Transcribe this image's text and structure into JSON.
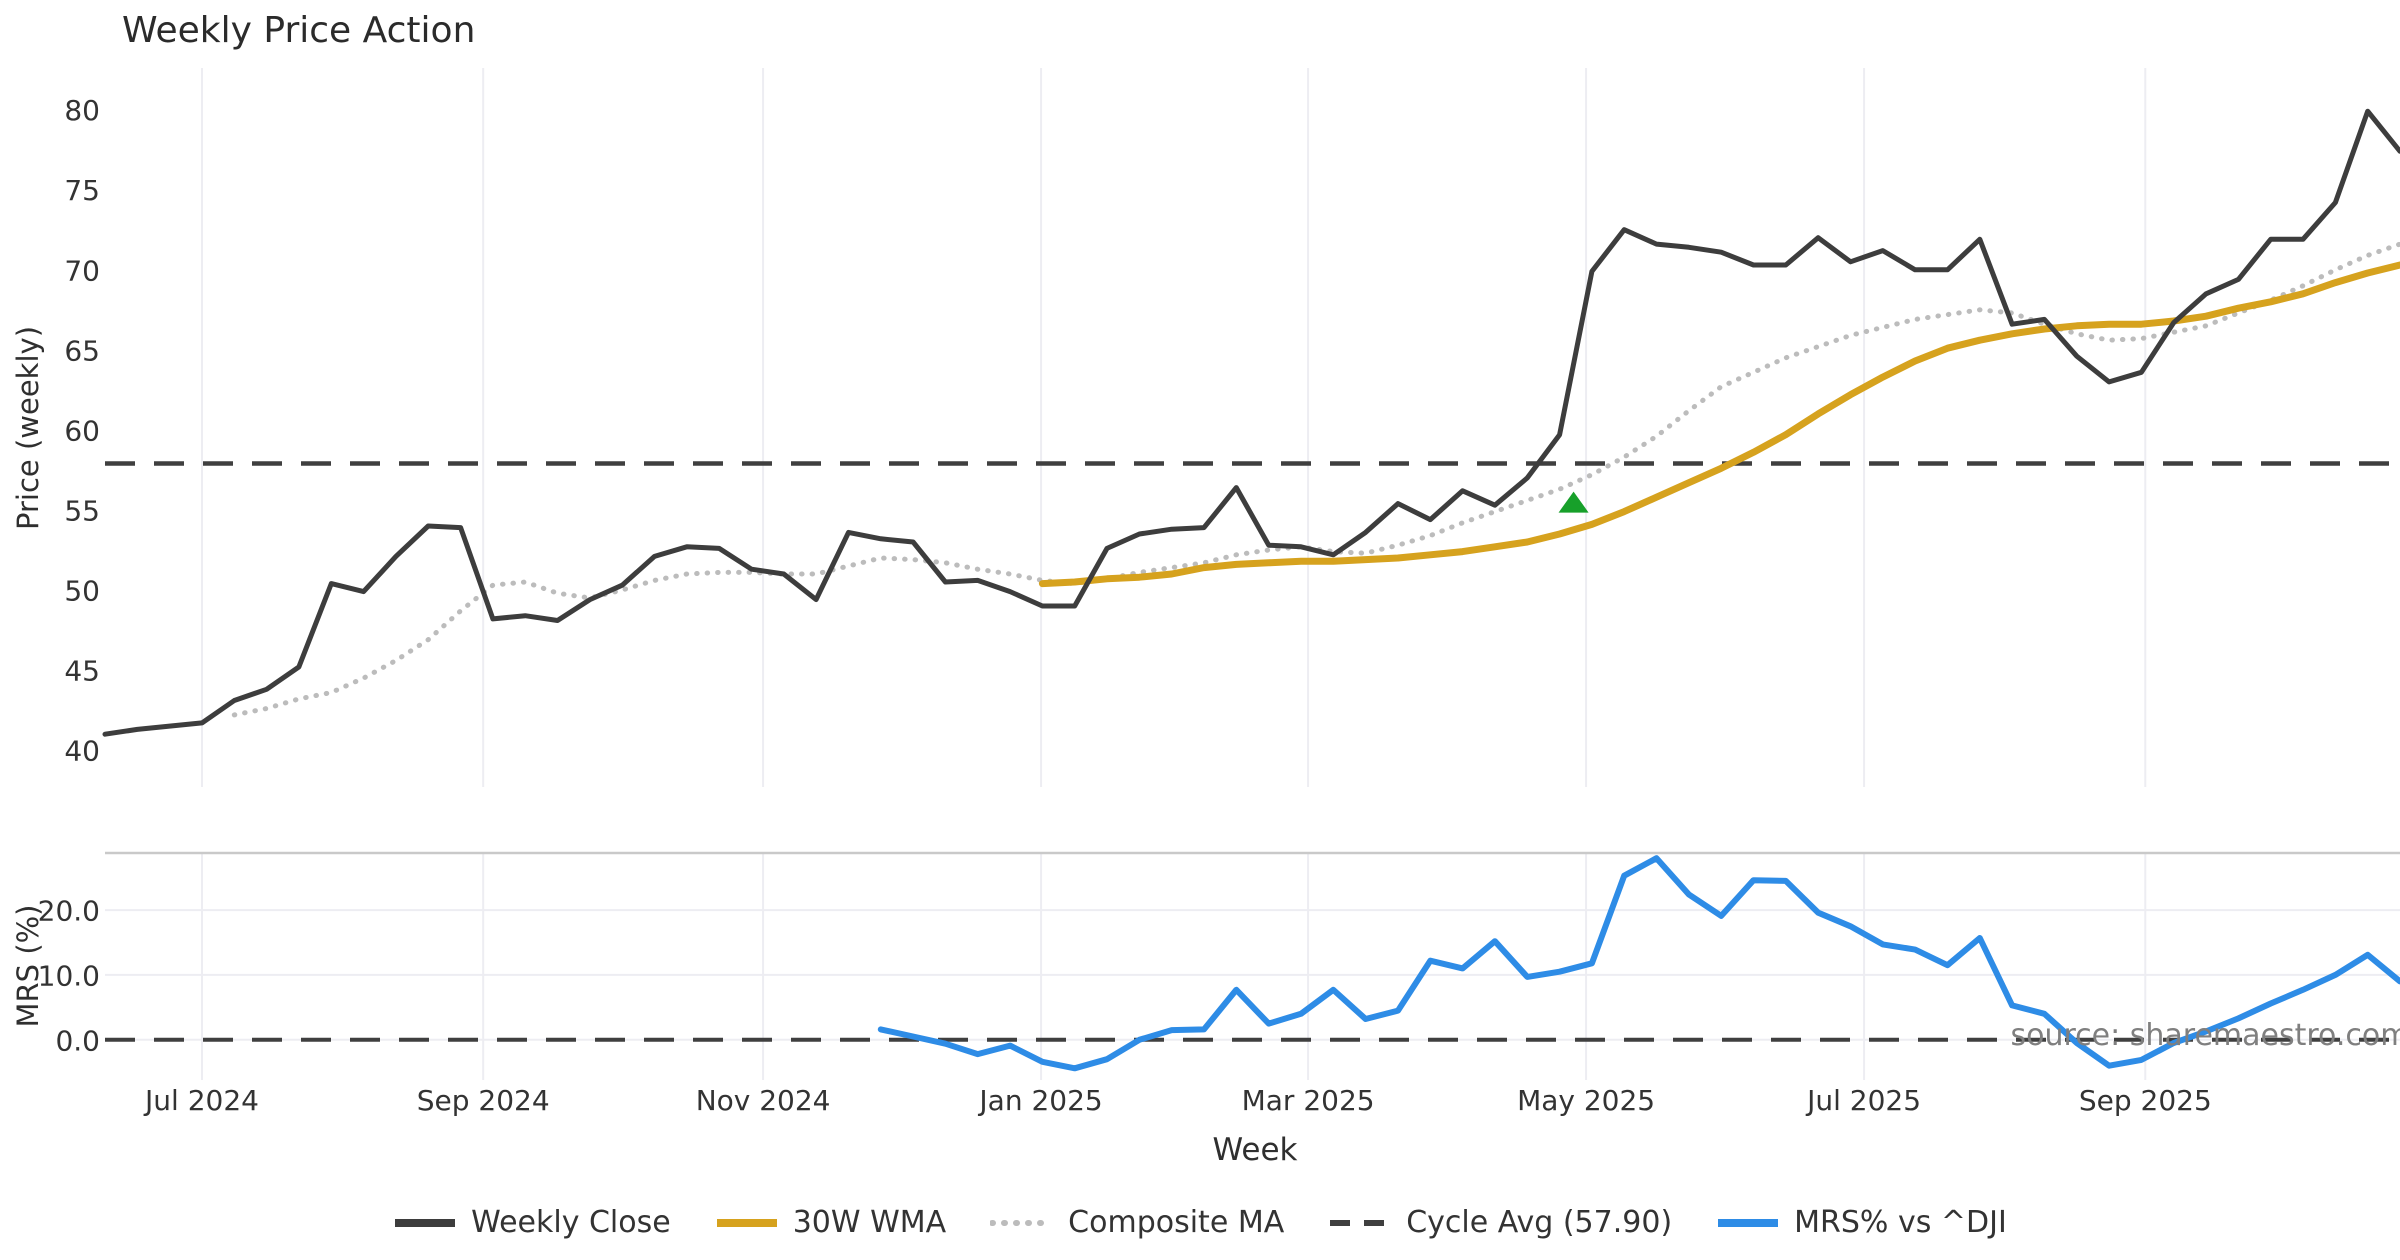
{
  "title": "Weekly Price Action",
  "source_note": "source: sharemaestro.com",
  "legend": [
    {
      "label": "Weekly Close",
      "color": "#3d3d3d",
      "style": "solid"
    },
    {
      "label": "30W WMA",
      "color": "#d6a21e",
      "style": "solid"
    },
    {
      "label": "Composite MA",
      "color": "#bcbcbc",
      "style": "dotted"
    },
    {
      "label": "Cycle Avg (57.90)",
      "color": "#3f3f3f",
      "style": "dashed"
    },
    {
      "label": "MRS% vs ^DJI",
      "color": "#2e8ce6",
      "style": "solid"
    }
  ],
  "chart_data": {
    "type": "line",
    "title": "Weekly Price Action",
    "xlabel": "Week",
    "x_unit": "weekly points, left to right",
    "n_points": 72,
    "x_ticks": [
      {
        "label": "Jul 2024",
        "pos": 3.0
      },
      {
        "label": "Sep 2024",
        "pos": 11.7
      },
      {
        "label": "Nov 2024",
        "pos": 20.36
      },
      {
        "label": "Jan 2025",
        "pos": 28.96
      },
      {
        "label": "Mar 2025",
        "pos": 37.22
      },
      {
        "label": "May 2025",
        "pos": 45.82
      },
      {
        "label": "Jul 2025",
        "pos": 54.42
      },
      {
        "label": "Sep 2025",
        "pos": 63.12
      }
    ],
    "panels": [
      {
        "id": "price",
        "ylabel": "Price (weekly)",
        "ylim": [
          37.7,
          82.6
        ],
        "yticks": [
          {
            "label": "40",
            "value": 40
          },
          {
            "label": "45",
            "value": 45
          },
          {
            "label": "50",
            "value": 50
          },
          {
            "label": "55",
            "value": 55
          },
          {
            "label": "60",
            "value": 60
          },
          {
            "label": "65",
            "value": 65
          },
          {
            "label": "70",
            "value": 70
          },
          {
            "label": "75",
            "value": 75
          },
          {
            "label": "80",
            "value": 80
          }
        ],
        "reference_line": {
          "label": "Cycle Avg (57.90)",
          "value": 57.9,
          "style": "dashed",
          "color": "#3f3f3f"
        },
        "signal_marker": {
          "shape": "triangle-up",
          "color": "#17a02a",
          "week_index": 45,
          "value": 55.4
        },
        "series": [
          {
            "name": "Weekly Close",
            "color": "#3d3d3d",
            "style": "solid",
            "width": 5,
            "start_index": 0,
            "values": [
              41.0,
              41.3,
              41.5,
              41.7,
              43.1,
              43.8,
              45.2,
              50.4,
              49.9,
              52.1,
              54.0,
              53.9,
              48.2,
              48.4,
              48.1,
              49.4,
              50.3,
              52.1,
              52.7,
              52.6,
              51.3,
              51.0,
              49.4,
              53.6,
              53.2,
              53.0,
              50.5,
              50.6,
              49.9,
              49.0,
              49.0,
              52.6,
              53.5,
              53.8,
              53.9,
              56.4,
              52.8,
              52.7,
              52.2,
              53.6,
              55.4,
              54.4,
              56.2,
              55.3,
              57.0,
              59.7,
              69.9,
              72.5,
              71.6,
              71.4,
              71.1,
              70.3,
              70.3,
              72.0,
              70.5,
              71.2,
              70.0,
              70.0,
              71.9,
              66.6,
              66.9,
              64.6,
              63.0,
              63.6,
              66.7,
              68.5,
              69.4,
              71.9,
              71.9,
              74.2,
              79.9,
              77.4
            ]
          },
          {
            "name": "30W WMA",
            "color": "#d6a21e",
            "style": "solid",
            "width": 7,
            "start_index": 29,
            "values": [
              50.4,
              50.5,
              50.7,
              50.8,
              51.0,
              51.4,
              51.6,
              51.7,
              51.8,
              51.8,
              51.9,
              52.0,
              52.2,
              52.4,
              52.7,
              53.0,
              53.5,
              54.1,
              54.9,
              55.8,
              56.7,
              57.6,
              58.6,
              59.7,
              61.0,
              62.2,
              63.3,
              64.3,
              65.1,
              65.6,
              66.0,
              66.3,
              66.5,
              66.6,
              66.6,
              66.8,
              67.1,
              67.6,
              68.0,
              68.5,
              69.2,
              69.8,
              70.3
            ]
          },
          {
            "name": "Composite MA",
            "color": "#bcbcbc",
            "style": "dotted",
            "width": 5,
            "start_index": 4,
            "values": [
              42.2,
              42.6,
              43.2,
              43.6,
              44.5,
              45.6,
              46.9,
              48.7,
              50.3,
              50.5,
              49.8,
              49.5,
              50.0,
              50.6,
              51.0,
              51.1,
              51.1,
              51.0,
              51.0,
              51.5,
              52.0,
              51.9,
              51.7,
              51.3,
              51.0,
              50.6,
              50.4,
              50.7,
              51.1,
              51.4,
              51.7,
              52.2,
              52.5,
              52.7,
              52.4,
              52.3,
              52.8,
              53.4,
              54.2,
              54.9,
              55.6,
              56.3,
              57.2,
              58.3,
              59.6,
              61.2,
              62.7,
              63.6,
              64.5,
              65.2,
              65.9,
              66.4,
              66.9,
              67.2,
              67.5,
              67.3,
              66.6,
              66.0,
              65.6,
              65.7,
              66.1,
              66.5,
              67.3,
              68.1,
              69.0,
              70.0,
              70.9,
              71.6
            ]
          }
        ]
      },
      {
        "id": "mrs",
        "ylabel": "MRS (%)",
        "ylim": [
          -6.2,
          28.8
        ],
        "yticks": [
          {
            "label": "0.0",
            "value": 0
          },
          {
            "label": "10.0",
            "value": 10
          },
          {
            "label": "20.0",
            "value": 20
          }
        ],
        "reference_line": {
          "label": "zero line",
          "value": 0.0,
          "style": "dashed",
          "color": "#3f3f3f"
        },
        "series": [
          {
            "name": "MRS% vs ^DJI",
            "color": "#2e8ce6",
            "style": "solid",
            "width": 6,
            "start_index": 24,
            "values": [
              1.6,
              0.5,
              -0.6,
              -2.2,
              -0.9,
              -3.4,
              -4.4,
              -3.0,
              0.0,
              1.5,
              1.6,
              7.7,
              2.5,
              4.0,
              7.7,
              3.2,
              4.5,
              12.2,
              11.0,
              15.2,
              9.7,
              10.5,
              11.8,
              25.3,
              28.0,
              22.4,
              19.1,
              24.6,
              24.5,
              19.6,
              17.5,
              14.7,
              13.9,
              11.5,
              15.7,
              5.3,
              4.0,
              -0.5,
              -4.0,
              -3.1,
              -0.5,
              1.3,
              3.3,
              5.6,
              7.7,
              10.0,
              13.1,
              9.0
            ]
          }
        ]
      }
    ]
  }
}
